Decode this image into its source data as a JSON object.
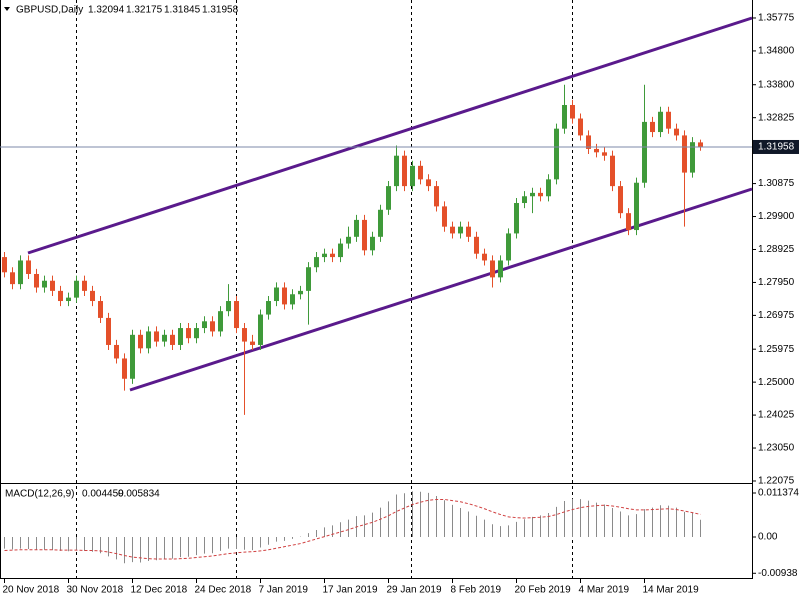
{
  "chart_data": [
    {
      "type": "candlestick",
      "title": "GBPUSD,Daily",
      "categories": [
        "20 Nov 2018",
        null,
        null,
        null,
        null,
        null,
        null,
        null,
        "30 Nov 2018",
        null,
        null,
        null,
        null,
        null,
        null,
        null,
        "12 Dec 2018",
        null,
        null,
        null,
        null,
        null,
        null,
        null,
        "24 Dec 2018",
        null,
        null,
        null,
        null,
        null,
        null,
        null,
        "7 Jan 2019",
        null,
        null,
        null,
        null,
        null,
        null,
        null,
        "17 Jan 2019",
        null,
        null,
        null,
        null,
        null,
        null,
        null,
        "29 Jan 2019",
        null,
        null,
        null,
        null,
        null,
        null,
        null,
        "8 Feb 2019",
        null,
        null,
        null,
        null,
        null,
        null,
        null,
        "20 Feb 2019",
        null,
        null,
        null,
        null,
        null,
        null,
        null,
        "4 Mar 2019",
        null,
        null,
        null,
        null,
        null,
        null,
        null,
        "14 Mar 2019",
        null,
        null,
        null,
        null,
        null,
        null,
        null
      ],
      "open": [
        1.287,
        1.2825,
        1.279,
        1.286,
        1.282,
        1.278,
        1.28,
        1.277,
        1.274,
        1.275,
        1.28,
        1.277,
        1.274,
        1.269,
        1.261,
        1.257,
        1.251,
        1.264,
        1.26,
        1.265,
        1.262,
        1.264,
        1.261,
        1.266,
        1.263,
        1.266,
        1.268,
        1.265,
        1.271,
        1.274,
        1.266,
        1.262,
        1.261,
        1.27,
        1.274,
        1.278,
        1.273,
        1.276,
        1.277,
        1.284,
        1.287,
        1.288,
        1.287,
        1.291,
        1.293,
        1.298,
        1.289,
        1.293,
        1.301,
        1.308,
        1.317,
        1.308,
        1.314,
        1.31,
        1.308,
        1.302,
        1.296,
        1.294,
        1.296,
        1.293,
        1.288,
        1.286,
        1.281,
        1.286,
        1.294,
        1.303,
        1.305,
        1.306,
        1.305,
        1.31,
        1.325,
        1.332,
        1.328,
        1.323,
        1.319,
        1.318,
        1.317,
        1.308,
        1.3,
        1.295,
        1.309,
        1.327,
        1.324,
        1.33,
        1.325,
        1.323,
        1.312,
        1.32094
      ],
      "high": [
        1.2885,
        1.284,
        1.2875,
        1.2875,
        1.2835,
        1.2815,
        1.2815,
        1.2785,
        1.2765,
        1.2815,
        1.2815,
        1.2785,
        1.2755,
        1.2705,
        1.2625,
        1.2585,
        1.2655,
        1.2655,
        1.2665,
        1.2665,
        1.2655,
        1.2655,
        1.2675,
        1.2675,
        1.2675,
        1.2695,
        1.2695,
        1.2725,
        1.279,
        1.2755,
        1.2675,
        1.264,
        1.2715,
        1.2755,
        1.2795,
        1.2795,
        1.2775,
        1.2785,
        1.2855,
        1.2885,
        1.2895,
        1.2895,
        1.2925,
        1.296,
        1.2995,
        1.2995,
        1.2945,
        1.3025,
        1.3095,
        1.32,
        1.3185,
        1.3155,
        1.3155,
        1.3115,
        1.3095,
        1.3035,
        1.2975,
        1.2975,
        1.2975,
        1.2945,
        1.2895,
        1.2875,
        1.2875,
        1.2955,
        1.3045,
        1.3065,
        1.3075,
        1.3075,
        1.3115,
        1.3265,
        1.338,
        1.3335,
        1.3295,
        1.3245,
        1.3205,
        1.3195,
        1.3185,
        1.3095,
        1.3015,
        1.3105,
        1.338,
        1.3285,
        1.3315,
        1.3315,
        1.3265,
        1.3245,
        1.3225,
        1.32175
      ],
      "low": [
        1.281,
        1.2775,
        1.2775,
        1.2805,
        1.2765,
        1.2765,
        1.2755,
        1.2725,
        1.2725,
        1.2735,
        1.2755,
        1.2725,
        1.2675,
        1.2595,
        1.2555,
        1.2475,
        1.2495,
        1.2585,
        1.2585,
        1.2605,
        1.2605,
        1.2595,
        1.2595,
        1.2615,
        1.2615,
        1.2645,
        1.2635,
        1.2635,
        1.2695,
        1.2645,
        1.2403,
        1.2595,
        1.2595,
        1.2685,
        1.2725,
        1.2715,
        1.2715,
        1.2745,
        1.267,
        1.2825,
        1.2855,
        1.2855,
        1.2855,
        1.2895,
        1.2915,
        1.2875,
        1.2875,
        1.2915,
        1.2995,
        1.3065,
        1.3065,
        1.3065,
        1.3085,
        1.3065,
        1.3005,
        1.2945,
        1.2925,
        1.2925,
        1.2915,
        1.2865,
        1.2845,
        1.278,
        1.2795,
        1.2845,
        1.2925,
        1.3015,
        1.3,
        1.3035,
        1.3035,
        1.3085,
        1.3235,
        1.3265,
        1.3215,
        1.3175,
        1.3165,
        1.3155,
        1.3065,
        1.2985,
        1.2935,
        1.2935,
        1.3075,
        1.3225,
        1.3225,
        1.3235,
        1.3215,
        1.296,
        1.3105,
        1.31845
      ],
      "close": [
        1.2825,
        1.279,
        1.286,
        1.282,
        1.278,
        1.28,
        1.277,
        1.274,
        1.275,
        1.28,
        1.277,
        1.274,
        1.269,
        1.261,
        1.257,
        1.251,
        1.264,
        1.26,
        1.265,
        1.262,
        1.264,
        1.261,
        1.266,
        1.263,
        1.266,
        1.268,
        1.265,
        1.271,
        1.274,
        1.266,
        1.262,
        1.261,
        1.27,
        1.274,
        1.278,
        1.273,
        1.276,
        1.277,
        1.284,
        1.287,
        1.288,
        1.287,
        1.291,
        1.293,
        1.298,
        1.289,
        1.293,
        1.301,
        1.308,
        1.317,
        1.308,
        1.314,
        1.31,
        1.308,
        1.302,
        1.296,
        1.294,
        1.296,
        1.293,
        1.288,
        1.286,
        1.281,
        1.286,
        1.294,
        1.303,
        1.305,
        1.306,
        1.305,
        1.31,
        1.325,
        1.332,
        1.328,
        1.323,
        1.319,
        1.318,
        1.317,
        1.308,
        1.3,
        1.295,
        1.309,
        1.327,
        1.324,
        1.33,
        1.325,
        1.323,
        1.312,
        1.321,
        1.31958
      ],
      "up_color": "#3f9a3a",
      "down_color": "#e4502a",
      "price_line_color": "#7c8aa8",
      "ylim": [
        1.22045,
        1.36307
      ],
      "yticks": [
        {
          "value": 1.35775,
          "label": "1.35775"
        },
        {
          "value": 1.348,
          "label": "1.34800"
        },
        {
          "value": 1.338,
          "label": "1.33800"
        },
        {
          "value": 1.32825,
          "label": "1.32825"
        },
        {
          "value": 1.30875,
          "label": "1.30875"
        },
        {
          "value": 1.299,
          "label": "1.29900"
        },
        {
          "value": 1.28925,
          "label": "1.28925"
        },
        {
          "value": 1.2795,
          "label": "1.27950"
        },
        {
          "value": 1.26975,
          "label": "1.26975"
        },
        {
          "value": 1.25975,
          "label": "1.25975"
        },
        {
          "value": 1.25,
          "label": "1.25000"
        },
        {
          "value": 1.24025,
          "label": "1.24025"
        },
        {
          "value": 1.2305,
          "label": "1.23050"
        },
        {
          "value": 1.22075,
          "label": "1.22075"
        }
      ]
    },
    {
      "type": "macd",
      "title": "MACD(12,26,9)",
      "macd": [
        -0.003,
        -0.0032,
        -0.003,
        -0.0031,
        -0.0033,
        -0.0033,
        -0.0034,
        -0.0036,
        -0.0037,
        -0.0035,
        -0.0036,
        -0.0038,
        -0.0042,
        -0.005,
        -0.0058,
        -0.0068,
        -0.0065,
        -0.0066,
        -0.0062,
        -0.006,
        -0.0057,
        -0.0056,
        -0.0052,
        -0.0051,
        -0.0047,
        -0.0043,
        -0.0042,
        -0.0036,
        -0.003,
        -0.0031,
        -0.0033,
        -0.0034,
        -0.0027,
        -0.002,
        -0.0012,
        -0.001,
        -0.0005,
        0.0001,
        0.001,
        0.0018,
        0.0025,
        0.003,
        0.0038,
        0.0045,
        0.0054,
        0.0056,
        0.0063,
        0.0076,
        0.0092,
        0.011,
        0.0113,
        0.0118,
        0.0117,
        0.0114,
        0.0106,
        0.0095,
        0.0083,
        0.0075,
        0.0066,
        0.0055,
        0.0045,
        0.0033,
        0.0028,
        0.003,
        0.0039,
        0.0046,
        0.0052,
        0.0056,
        0.0062,
        0.0078,
        0.0093,
        0.0099,
        0.0098,
        0.0094,
        0.0089,
        0.0084,
        0.0075,
        0.0066,
        0.0056,
        0.0059,
        0.0072,
        0.0076,
        0.0082,
        0.0081,
        0.0076,
        0.0065,
        0.0063,
        0.004459
      ],
      "signal": [
        -0.0035,
        -0.0034,
        -0.0033,
        -0.0033,
        -0.0033,
        -0.0033,
        -0.0033,
        -0.0034,
        -0.0034,
        -0.0034,
        -0.0035,
        -0.0035,
        -0.0036,
        -0.0039,
        -0.0043,
        -0.0048,
        -0.0052,
        -0.0054,
        -0.0056,
        -0.0057,
        -0.0057,
        -0.0057,
        -0.0056,
        -0.0055,
        -0.0053,
        -0.0051,
        -0.0049,
        -0.0046,
        -0.0043,
        -0.0041,
        -0.0039,
        -0.0038,
        -0.0036,
        -0.0033,
        -0.0029,
        -0.0025,
        -0.0021,
        -0.0017,
        -0.0011,
        -0.0005,
        0.0001,
        0.0007,
        0.0013,
        0.0019,
        0.0026,
        0.0032,
        0.0038,
        0.0046,
        0.0055,
        0.0066,
        0.0075,
        0.0084,
        0.009,
        0.0095,
        0.0097,
        0.0097,
        0.0094,
        0.0091,
        0.0086,
        0.008,
        0.0073,
        0.0065,
        0.0058,
        0.0052,
        0.005,
        0.0049,
        0.005,
        0.0051,
        0.0053,
        0.0058,
        0.0065,
        0.0071,
        0.0076,
        0.0079,
        0.0081,
        0.0082,
        0.008,
        0.0077,
        0.0073,
        0.007,
        0.007,
        0.0071,
        0.0072,
        0.0073,
        0.0071,
        0.0067,
        0.0063,
        0.005834
      ],
      "histogram_color": "#8a8a8a",
      "signal_color": "#d04040",
      "ylim": [
        -0.0106,
        0.01344
      ],
      "yticks": [
        0.011374,
        {
          "value": 0,
          "label": "0.00"
        },
        -0.00938
      ]
    }
  ]
}
